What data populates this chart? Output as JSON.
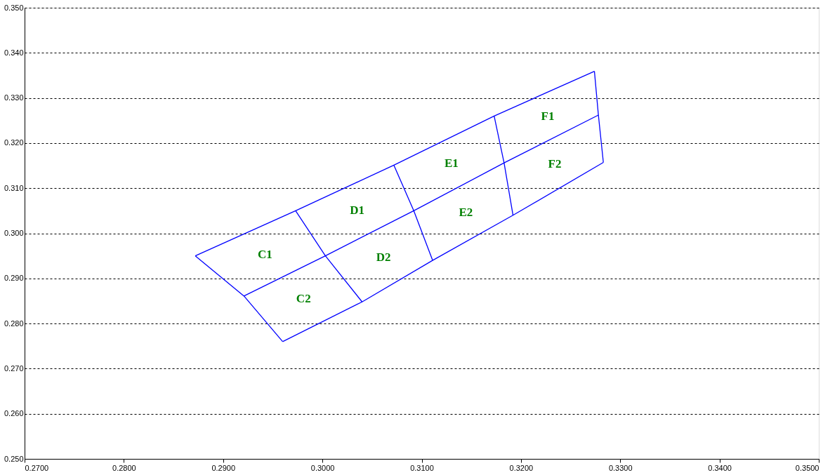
{
  "chart_data": {
    "type": "line",
    "xlim": [
      0.27,
      0.35
    ],
    "xticks": [
      {
        "value": 0.27,
        "label": "0.2700"
      },
      {
        "value": 0.28,
        "label": "0.2800"
      },
      {
        "value": 0.29,
        "label": "0.2900"
      },
      {
        "value": 0.3,
        "label": "0.3000"
      },
      {
        "value": 0.31,
        "label": "0.3100"
      },
      {
        "value": 0.32,
        "label": "0.3200"
      },
      {
        "value": 0.33,
        "label": "0.3300"
      },
      {
        "value": 0.34,
        "label": "0.3400"
      },
      {
        "value": 0.35,
        "label": "0.3500"
      }
    ],
    "ylim": [
      0.25,
      0.35
    ],
    "yticks": [
      {
        "value": 0.25,
        "label": "0.250"
      },
      {
        "value": 0.26,
        "label": "0.260"
      },
      {
        "value": 0.27,
        "label": "0.270"
      },
      {
        "value": 0.28,
        "label": "0.280"
      },
      {
        "value": 0.29,
        "label": "0.290"
      },
      {
        "value": 0.3,
        "label": "0.300"
      },
      {
        "value": 0.31,
        "label": "0.310"
      },
      {
        "value": 0.32,
        "label": "0.320"
      },
      {
        "value": 0.33,
        "label": "0.330"
      },
      {
        "value": 0.34,
        "label": "0.340"
      },
      {
        "value": 0.35,
        "label": "0.350"
      }
    ],
    "grid": "y",
    "marker": "none",
    "line_style": "solid",
    "series": [
      {
        "color": "#0000ff",
        "x": [
          0.2872,
          0.2973,
          0.3072,
          0.3173,
          0.3274
        ],
        "values": [
          0.295,
          0.305,
          0.3151,
          0.326,
          0.3359
        ]
      },
      {
        "color": "#0000ff",
        "x": [
          0.2921,
          0.3003,
          0.3092,
          0.3183,
          0.3278
        ],
        "values": [
          0.2861,
          0.295,
          0.305,
          0.3156,
          0.3262
        ]
      },
      {
        "color": "#0000ff",
        "x": [
          0.296,
          0.304,
          0.3111,
          0.3192,
          0.3283
        ],
        "values": [
          0.276,
          0.2848,
          0.294,
          0.304,
          0.3157
        ]
      },
      {
        "color": "#0000ff",
        "x": [
          0.2872,
          0.2921,
          0.296
        ],
        "values": [
          0.295,
          0.2861,
          0.276
        ]
      },
      {
        "color": "#0000ff",
        "x": [
          0.2973,
          0.3003,
          0.304
        ],
        "values": [
          0.305,
          0.295,
          0.2848
        ]
      },
      {
        "color": "#0000ff",
        "x": [
          0.3072,
          0.3092,
          0.3111
        ],
        "values": [
          0.3151,
          0.305,
          0.294
        ]
      },
      {
        "color": "#0000ff",
        "x": [
          0.3173,
          0.3183,
          0.3192
        ],
        "values": [
          0.326,
          0.3156,
          0.304
        ]
      },
      {
        "color": "#0000ff",
        "x": [
          0.3274,
          0.3278,
          0.3283
        ],
        "values": [
          0.3359,
          0.3262,
          0.3157
        ]
      }
    ],
    "annotations": [
      "C1",
      "D1",
      "E1",
      "F1",
      "C2",
      "D2",
      "E2",
      "F2"
    ]
  }
}
